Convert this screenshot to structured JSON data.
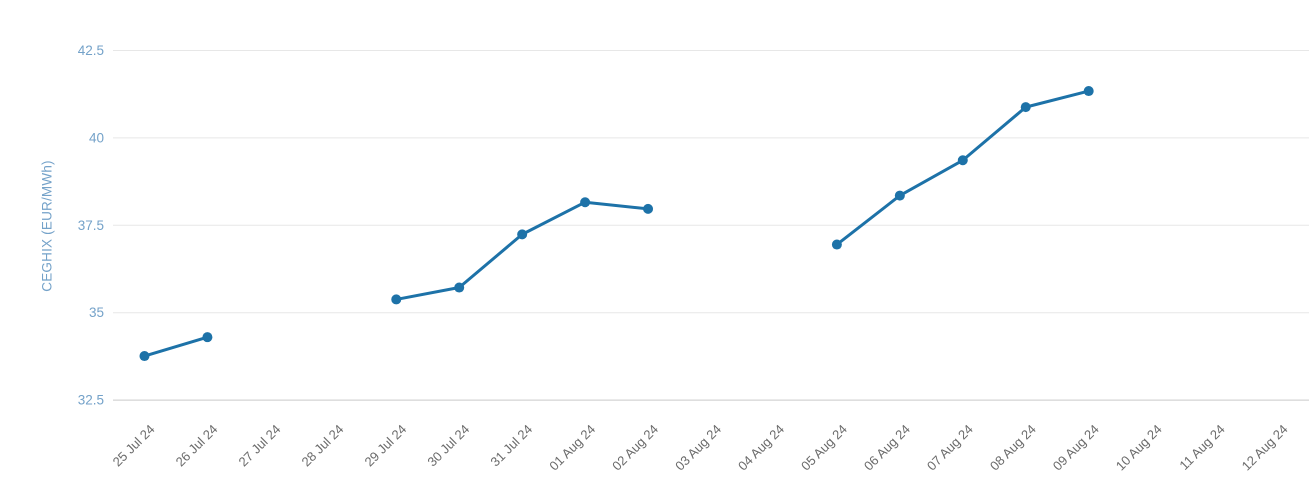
{
  "chart_data": {
    "type": "line",
    "title": "",
    "xlabel": "",
    "ylabel": "CEGHIX (EUR/MWh)",
    "categories": [
      "25 Jul 24",
      "26 Jul 24",
      "27 Jul 24",
      "28 Jul 24",
      "29 Jul 24",
      "30 Jul 24",
      "31 Jul 24",
      "01 Aug 24",
      "02 Aug 24",
      "03 Aug 24",
      "04 Aug 24",
      "05 Aug 24",
      "06 Aug 24",
      "07 Aug 24",
      "08 Aug 24",
      "09 Aug 24",
      "10 Aug 24",
      "11 Aug 24",
      "12 Aug 24"
    ],
    "series": [
      {
        "name": "CEGHIX",
        "values": [
          33.76,
          34.3,
          null,
          null,
          35.38,
          35.72,
          37.24,
          38.16,
          37.97,
          null,
          null,
          36.95,
          38.35,
          39.36,
          40.88,
          41.34,
          null,
          null,
          null
        ]
      }
    ],
    "yticks": [
      32.5,
      35,
      37.5,
      40,
      42.5
    ],
    "ylim": [
      32.5,
      42.5
    ],
    "grid": "horizontal-only",
    "legend": "none",
    "gaps_note": "no data on weekends and last three dates",
    "colors": {
      "line": "#1d72a8",
      "marker": "#1d72a8",
      "y_axis_text": "#74a2c9",
      "x_axis_text": "#6a6a6a",
      "gridline": "#e7e7e7",
      "baseline": "#c9c9c9",
      "background": "#ffffff"
    }
  }
}
